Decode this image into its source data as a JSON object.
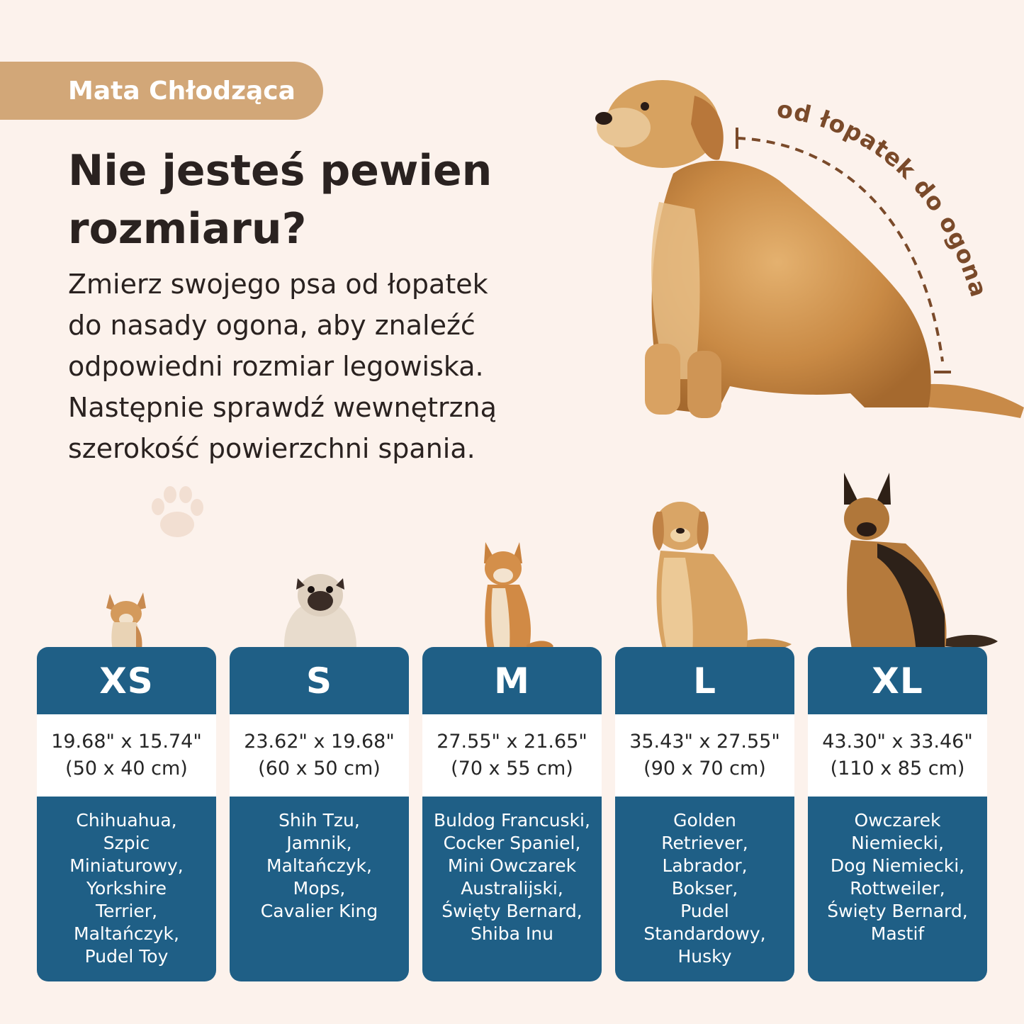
{
  "badge": {
    "label": "Mata Chłodząca"
  },
  "headline": {
    "line1": "Nie jesteś pewien",
    "line2": "rozmiaru?"
  },
  "instructions": {
    "lines": [
      "Zmierz swojego psa od łopatek",
      "do nasady ogona, aby znaleźć",
      "odpowiedni rozmiar legowiska.",
      "Następnie sprawdź wewnętrzną",
      "szerokość powierzchni spania."
    ]
  },
  "measure_label": "od łopatek do ogona",
  "colors": {
    "background": "#fcf2ec",
    "badge": "#d2a778",
    "card_blue": "#1f5f86",
    "text_dark": "#2a2220",
    "measure_brown": "#7a4a2a"
  },
  "icons": {
    "paw": "paw-icon",
    "measure_line": "dashed-measure-arc"
  },
  "sizes": [
    {
      "code": "XS",
      "inches": "19.68\" x 15.74\"",
      "cm": "(50 x 40 cm)",
      "breeds": [
        "Chihuahua,",
        "Szpic",
        "Miniaturowy,",
        "Yorkshire",
        "Terrier,",
        "Maltańczyk,",
        "Pudel Toy"
      ],
      "dog_image": "chihuahua"
    },
    {
      "code": "S",
      "inches": "23.62\" x 19.68\"",
      "cm": "(60 x 50 cm)",
      "breeds": [
        "Shih Tzu,",
        "Jamnik,",
        "Maltańczyk,",
        "Mops,",
        "Cavalier King"
      ],
      "dog_image": "pug"
    },
    {
      "code": "M",
      "inches": "27.55\" x 21.65\"",
      "cm": "(70 x 55 cm)",
      "breeds": [
        "Buldog Francuski,",
        "Cocker Spaniel,",
        "Mini Owczarek",
        "Australijski,",
        "Święty Bernard,",
        "Shiba Inu"
      ],
      "dog_image": "shiba-inu"
    },
    {
      "code": "L",
      "inches": "35.43\" x 27.55\"",
      "cm": "(90 x 70 cm)",
      "breeds": [
        "Golden",
        "Retriever,",
        "Labrador,",
        "Bokser,",
        "Pudel",
        "Standardowy,",
        "Husky"
      ],
      "dog_image": "golden-retriever"
    },
    {
      "code": "XL",
      "inches": "43.30\" x 33.46\"",
      "cm": "(110 x 85 cm)",
      "breeds": [
        "Owczarek",
        "Niemiecki,",
        "Dog Niemiecki,",
        "Rottweiler,",
        "Święty Bernard,",
        "Mastif"
      ],
      "dog_image": "german-shepherd"
    }
  ]
}
